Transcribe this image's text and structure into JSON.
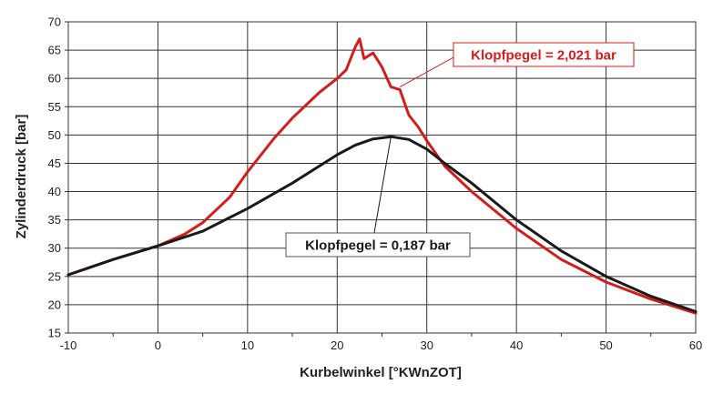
{
  "chart_data": {
    "type": "line",
    "xlabel": "Kurbelwinkel [°KWnZOT]",
    "ylabel": "Zylinderdruck [bar]",
    "xlim": [
      -10,
      60
    ],
    "ylim": [
      15,
      70
    ],
    "x_ticks": [
      "-10",
      "0",
      "10",
      "20",
      "30",
      "40",
      "50",
      "60"
    ],
    "y_ticks": [
      "15",
      "20",
      "25",
      "30",
      "35",
      "40",
      "45",
      "50",
      "55",
      "60",
      "65",
      "70"
    ],
    "grid": true,
    "series": [
      {
        "color": "#d41c1c",
        "annotation": "Klopfpegel = 2,021 bar",
        "x": [
          -10,
          -5,
          0,
          3,
          5,
          8,
          10,
          13,
          15,
          18,
          20,
          21,
          22,
          22.5,
          23,
          24,
          25,
          26,
          27,
          28,
          29,
          30,
          32,
          35,
          40,
          45,
          50,
          55,
          60
        ],
        "y": [
          25.3,
          28.0,
          30.4,
          32.5,
          34.5,
          39.0,
          43.5,
          49.5,
          53.0,
          57.5,
          60.0,
          61.5,
          65.5,
          67.0,
          63.5,
          64.5,
          62.0,
          58.5,
          58.0,
          53.5,
          51.5,
          49.0,
          44.5,
          40.0,
          33.5,
          28.0,
          24.0,
          21.0,
          18.5
        ]
      },
      {
        "color": "#1a1a1a",
        "annotation": "Klopfpegel = 0,187 bar",
        "x": [
          -10,
          -5,
          0,
          5,
          10,
          15,
          20,
          22,
          24,
          26,
          28,
          30,
          32,
          35,
          40,
          45,
          50,
          55,
          60
        ],
        "y": [
          25.3,
          28.0,
          30.4,
          33.0,
          37.0,
          41.5,
          46.5,
          48.2,
          49.3,
          49.7,
          49.2,
          47.5,
          45.0,
          41.5,
          35.0,
          29.5,
          25.0,
          21.5,
          18.8
        ]
      }
    ]
  }
}
